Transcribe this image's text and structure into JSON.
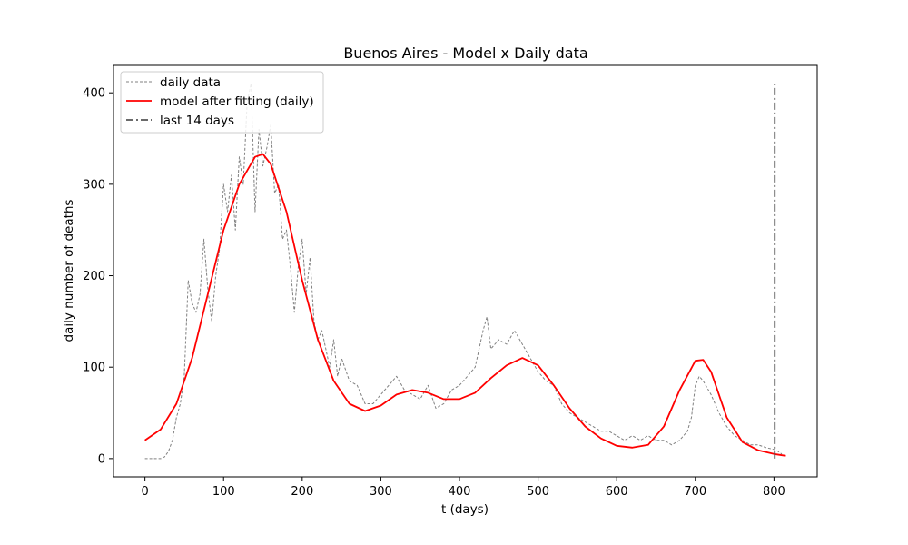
{
  "chart_data": {
    "type": "line",
    "title": "Buenos Aires - Model x Daily data",
    "xlabel": "t (days)",
    "ylabel": "daily number of deaths",
    "xlim": [
      -40,
      855
    ],
    "ylim": [
      -20,
      430
    ],
    "xticks": [
      0,
      100,
      200,
      300,
      400,
      500,
      600,
      700,
      800
    ],
    "yticks": [
      0,
      100,
      200,
      300,
      400
    ],
    "xtick_labels": [
      "0",
      "100",
      "200",
      "300",
      "400",
      "500",
      "600",
      "700",
      "800"
    ],
    "ytick_labels": [
      "0",
      "100",
      "200",
      "300",
      "400"
    ],
    "grid": false,
    "legend_position": "top-left",
    "legend": [
      "daily data",
      "model after fitting (daily)",
      "last 14 days"
    ],
    "colors": {
      "daily_data": "#808080",
      "model": "#ff0000",
      "vline": "#555555"
    },
    "series": [
      {
        "name": "daily data",
        "style": "dashed",
        "x": [
          0,
          10,
          20,
          25,
          30,
          35,
          40,
          45,
          50,
          55,
          60,
          65,
          70,
          75,
          80,
          85,
          90,
          95,
          100,
          105,
          110,
          115,
          120,
          125,
          130,
          135,
          140,
          145,
          150,
          155,
          160,
          165,
          170,
          175,
          180,
          185,
          190,
          195,
          200,
          205,
          210,
          215,
          220,
          225,
          230,
          235,
          240,
          245,
          250,
          260,
          270,
          280,
          290,
          300,
          310,
          320,
          330,
          340,
          350,
          360,
          370,
          380,
          390,
          400,
          410,
          420,
          430,
          435,
          440,
          450,
          460,
          470,
          480,
          490,
          500,
          510,
          520,
          530,
          540,
          550,
          560,
          570,
          580,
          590,
          600,
          610,
          620,
          630,
          640,
          650,
          660,
          670,
          680,
          690,
          695,
          700,
          705,
          710,
          720,
          730,
          740,
          750,
          760,
          770,
          780,
          790,
          800,
          805,
          810
        ],
        "y": [
          0,
          0,
          0,
          2,
          8,
          20,
          45,
          60,
          90,
          195,
          170,
          160,
          180,
          240,
          185,
          150,
          200,
          230,
          300,
          270,
          310,
          250,
          330,
          300,
          390,
          410,
          270,
          360,
          320,
          340,
          365,
          290,
          300,
          240,
          250,
          210,
          160,
          210,
          240,
          180,
          220,
          150,
          130,
          140,
          120,
          100,
          130,
          90,
          110,
          85,
          80,
          60,
          60,
          70,
          80,
          90,
          75,
          70,
          65,
          80,
          55,
          60,
          75,
          80,
          90,
          100,
          140,
          155,
          120,
          130,
          125,
          140,
          125,
          110,
          95,
          85,
          80,
          60,
          50,
          45,
          40,
          35,
          30,
          30,
          25,
          20,
          25,
          20,
          25,
          20,
          20,
          15,
          20,
          30,
          45,
          80,
          90,
          85,
          70,
          50,
          35,
          25,
          20,
          15,
          15,
          12,
          10,
          8,
          5
        ]
      },
      {
        "name": "model after fitting (daily)",
        "style": "solid",
        "x": [
          0,
          20,
          40,
          60,
          80,
          100,
          120,
          140,
          150,
          160,
          180,
          200,
          220,
          240,
          260,
          280,
          300,
          320,
          340,
          360,
          380,
          400,
          420,
          440,
          460,
          480,
          500,
          520,
          540,
          560,
          580,
          600,
          620,
          640,
          660,
          680,
          700,
          710,
          720,
          740,
          760,
          780,
          800,
          815
        ],
        "y": [
          20,
          32,
          60,
          110,
          180,
          250,
          300,
          330,
          333,
          322,
          270,
          195,
          130,
          85,
          60,
          52,
          58,
          70,
          75,
          72,
          65,
          65,
          72,
          88,
          102,
          110,
          102,
          80,
          55,
          35,
          22,
          14,
          12,
          15,
          35,
          75,
          107,
          108,
          95,
          45,
          18,
          9,
          5,
          3
        ]
      }
    ],
    "vlines": [
      {
        "name": "last 14 days",
        "x": 801,
        "ymin": 0,
        "ymax": 410,
        "style": "dashdot"
      }
    ]
  }
}
